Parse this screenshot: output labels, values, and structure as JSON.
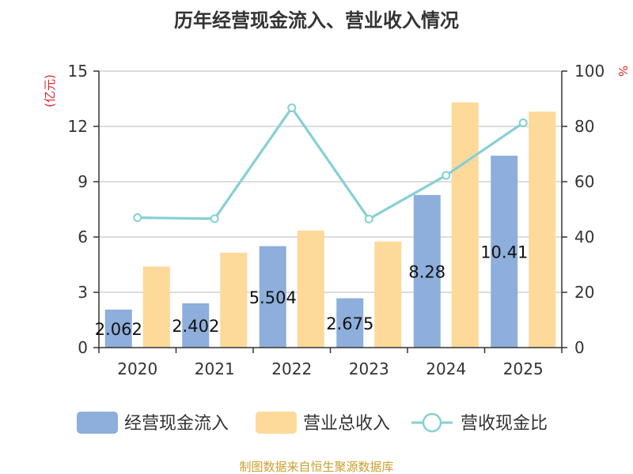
{
  "title": "历年经营现金流入、营业收入情况",
  "left_unit": "(亿元)",
  "right_unit": "%",
  "source": "制图数据来自恒生聚源数据库",
  "colors": {
    "cash": "#8eaedb",
    "revenue": "#fdd99a",
    "ratio": "#86d0d4",
    "grid": "#c8c8c8",
    "axis": "#333333"
  },
  "chart_data": {
    "type": "bar",
    "categories": [
      "2020",
      "2021",
      "2022",
      "2023",
      "2024",
      "2025"
    ],
    "series": [
      {
        "name": "经营现金流入",
        "axis": "left",
        "type": "bar",
        "values": [
          2.062,
          2.402,
          5.504,
          2.675,
          8.28,
          10.41
        ],
        "labels": [
          "2.062",
          "2.402",
          "5.504",
          "2.675",
          "8.28",
          "10.41"
        ]
      },
      {
        "name": "营业总收入",
        "axis": "left",
        "type": "bar",
        "values": [
          4.4,
          5.15,
          6.35,
          5.75,
          13.3,
          12.8
        ]
      },
      {
        "name": "营收现金比",
        "axis": "right",
        "type": "line",
        "values": [
          47,
          46.6,
          86.7,
          46.5,
          62.3,
          81.3
        ]
      }
    ],
    "y_left": {
      "min": 0,
      "max": 15,
      "ticks": [
        "0",
        "3",
        "6",
        "9",
        "12",
        "15"
      ]
    },
    "y_right": {
      "min": 0,
      "max": 100,
      "ticks": [
        "0",
        "20",
        "40",
        "60",
        "80",
        "100"
      ]
    },
    "grid": true,
    "legend_position": "bottom"
  }
}
